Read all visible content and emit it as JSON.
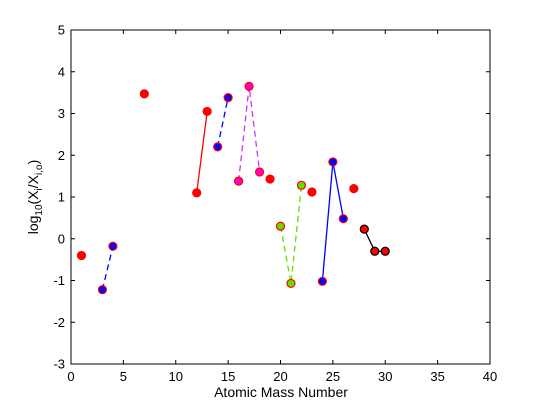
{
  "chart_data": {
    "type": "scatter",
    "title": "",
    "xlabel": "Atomic Mass Number",
    "ylabel": {
      "base": "log",
      "base_sub": "10",
      "open": "(X",
      "num_sub": "i",
      "slash": "/X",
      "den_sub": "i,o",
      "close": ")"
    },
    "xlim": [
      0,
      40
    ],
    "ylim": [
      -3,
      5
    ],
    "xticks": [
      0,
      5,
      10,
      15,
      20,
      25,
      30,
      35,
      40
    ],
    "yticks": [
      -3,
      -2,
      -1,
      0,
      1,
      2,
      3,
      4,
      5
    ],
    "grid": false,
    "isolated_points": [
      {
        "x": 1,
        "y": -0.4,
        "fill": "#ff0000",
        "edge": "#ff0000"
      },
      {
        "x": 7,
        "y": 3.47,
        "fill": "#ff0000",
        "edge": "#ff0000"
      },
      {
        "x": 19,
        "y": 1.43,
        "fill": "#ff0000",
        "edge": "#ff0000"
      },
      {
        "x": 23,
        "y": 1.12,
        "fill": "#ff0000",
        "edge": "#ff0000"
      },
      {
        "x": 27,
        "y": 1.2,
        "fill": "#ff0000",
        "edge": "#ff0000"
      }
    ],
    "series": [
      {
        "line_color": "#0000ff",
        "dash": true,
        "points": [
          {
            "x": 3,
            "y": -1.22,
            "fill": "#0000ff",
            "edge": "#ff0000"
          },
          {
            "x": 4,
            "y": -0.18,
            "fill": "#0000ff",
            "edge": "#ff0000"
          }
        ]
      },
      {
        "line_color": "#ff0000",
        "dash": false,
        "points": [
          {
            "x": 12,
            "y": 1.1,
            "fill": "#ff0000",
            "edge": "#ff0000"
          },
          {
            "x": 13,
            "y": 3.05,
            "fill": "#ff0000",
            "edge": "#ff0000"
          }
        ]
      },
      {
        "line_color": "#0000ff",
        "dash": true,
        "points": [
          {
            "x": 14,
            "y": 2.2,
            "fill": "#0000ff",
            "edge": "#ff0000"
          },
          {
            "x": 15,
            "y": 3.38,
            "fill": "#0000ff",
            "edge": "#ff0000"
          }
        ]
      },
      {
        "line_color": "#cc33ff",
        "dash": true,
        "points": [
          {
            "x": 16,
            "y": 1.38,
            "fill": "#ff00cc",
            "edge": "#ff0000"
          },
          {
            "x": 17,
            "y": 3.65,
            "fill": "#ff00cc",
            "edge": "#ff0000"
          },
          {
            "x": 18,
            "y": 1.6,
            "fill": "#ff00cc",
            "edge": "#ff0000"
          }
        ]
      },
      {
        "line_color": "#66dd00",
        "dash": true,
        "points": [
          {
            "x": 20,
            "y": 0.3,
            "fill": "#66dd00",
            "edge": "#ff0000"
          },
          {
            "x": 21,
            "y": -1.07,
            "fill": "#66dd00",
            "edge": "#ff0000"
          },
          {
            "x": 22,
            "y": 1.28,
            "fill": "#66dd00",
            "edge": "#ff0000"
          }
        ]
      },
      {
        "line_color": "#0000ff",
        "dash": false,
        "points": [
          {
            "x": 24,
            "y": -1.02,
            "fill": "#0000ff",
            "edge": "#ff0000"
          },
          {
            "x": 25,
            "y": 1.84,
            "fill": "#0000ff",
            "edge": "#ff0000"
          },
          {
            "x": 26,
            "y": 0.48,
            "fill": "#0000ff",
            "edge": "#ff0000"
          }
        ]
      },
      {
        "line_color": "#000000",
        "dash": false,
        "points": [
          {
            "x": 28,
            "y": 0.23,
            "fill": "#ff0000",
            "edge": "#000000"
          },
          {
            "x": 29,
            "y": -0.3,
            "fill": "#ff0000",
            "edge": "#000000"
          },
          {
            "x": 30,
            "y": -0.3,
            "fill": "#ff0000",
            "edge": "#000000"
          }
        ]
      }
    ]
  }
}
